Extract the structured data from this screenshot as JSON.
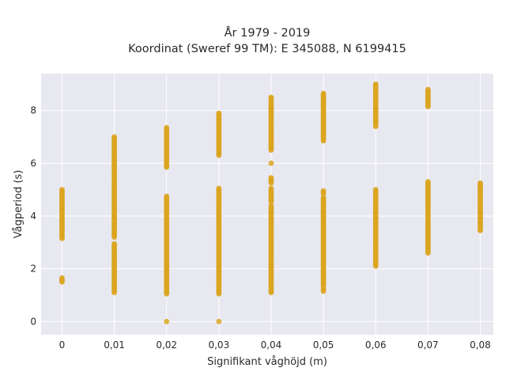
{
  "chart_data": {
    "type": "scatter",
    "title_lines": [
      "År 1979 - 2019",
      "Koordinat (Sweref 99 TM): E 345088, N 6199415"
    ],
    "xlabel": "Signifikant våghöjd (m)",
    "ylabel": "Vågperiod (s)",
    "x_ticks": [
      0,
      0.01,
      0.02,
      0.03,
      0.04,
      0.05,
      0.06,
      0.07,
      0.08
    ],
    "x_tick_labels": [
      "0",
      "0,01",
      "0,02",
      "0,03",
      "0,04",
      "0,05",
      "0,06",
      "0,07",
      "0,08"
    ],
    "y_ticks": [
      0,
      2,
      4,
      6,
      8
    ],
    "y_tick_labels": [
      "0",
      "2",
      "4",
      "6",
      "8"
    ],
    "xlim": [
      -0.004,
      0.0825
    ],
    "ylim": [
      -0.5,
      9.4
    ],
    "grid": true,
    "marker_color": "#DAA520",
    "plot_background": "#E8E8F0",
    "columns": [
      {
        "x": 0.0,
        "segments": [
          [
            3.15,
            5.0
          ],
          [
            1.5,
            1.65
          ]
        ]
      },
      {
        "x": 0.01,
        "segments": [
          [
            1.1,
            2.95
          ],
          [
            3.2,
            5.45
          ],
          [
            5.55,
            7.0
          ]
        ]
      },
      {
        "x": 0.02,
        "segments": [
          [
            1.05,
            4.75
          ],
          [
            5.85,
            7.35
          ],
          [
            0.0,
            0.0
          ]
        ]
      },
      {
        "x": 0.03,
        "segments": [
          [
            1.05,
            5.05
          ],
          [
            6.3,
            7.9
          ],
          [
            0.0,
            0.0
          ]
        ]
      },
      {
        "x": 0.04,
        "segments": [
          [
            1.1,
            4.4
          ],
          [
            4.55,
            5.05
          ],
          [
            5.25,
            5.45
          ],
          [
            6.0,
            6.0
          ],
          [
            6.5,
            8.5
          ]
        ]
      },
      {
        "x": 0.05,
        "segments": [
          [
            1.15,
            1.25
          ],
          [
            1.35,
            4.7
          ],
          [
            4.85,
            4.95
          ],
          [
            6.85,
            8.65
          ]
        ]
      },
      {
        "x": 0.06,
        "segments": [
          [
            2.1,
            5.0
          ],
          [
            7.4,
            9.0
          ]
        ]
      },
      {
        "x": 0.07,
        "segments": [
          [
            2.6,
            5.3
          ],
          [
            8.15,
            8.8
          ]
        ]
      },
      {
        "x": 0.08,
        "segments": [
          [
            3.45,
            5.25
          ]
        ]
      }
    ]
  }
}
